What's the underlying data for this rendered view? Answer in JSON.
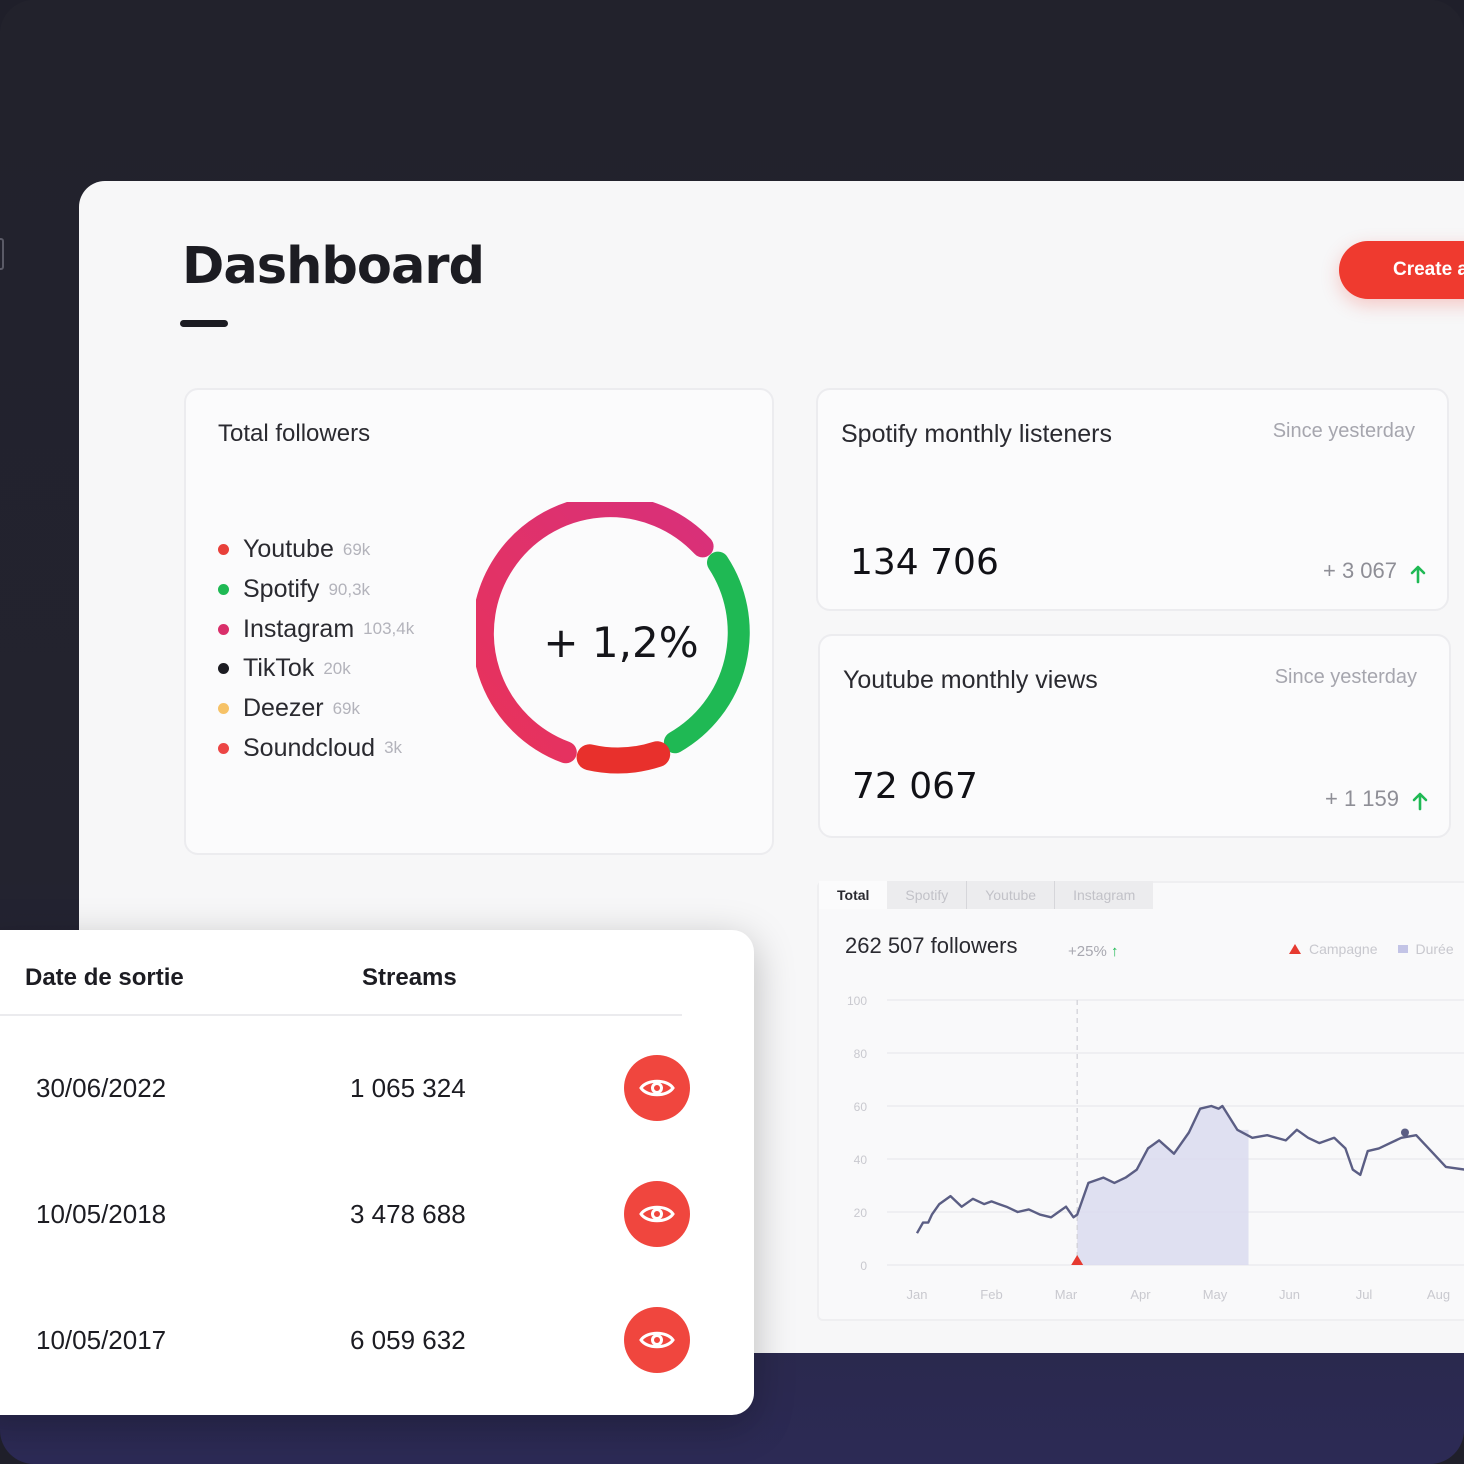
{
  "header": {
    "title": "Dashboard",
    "create_label": "Create a"
  },
  "followers": {
    "title": "Total followers",
    "items": [
      {
        "name": "Youtube",
        "value": "69k",
        "color": "#e8403a"
      },
      {
        "name": "Spotify",
        "value": "90,3k",
        "color": "#1fb954"
      },
      {
        "name": "Instagram",
        "value": "103,4k",
        "color": "#d92f6a"
      },
      {
        "name": "TikTok",
        "value": "20k",
        "color": "#1c1c22"
      },
      {
        "name": "Deezer",
        "value": "69k",
        "color": "#f6c267"
      },
      {
        "name": "Soundcloud",
        "value": "3k",
        "color": "#ec4545"
      }
    ],
    "donut_center": "+ 1,2%"
  },
  "spotify_card": {
    "title": "Spotify monthly listeners",
    "since": "Since yesterday",
    "value": "134 706",
    "delta": "+ 3 067"
  },
  "youtube_card": {
    "title": "Youtube monthly views",
    "since": "Since yesterday",
    "value": "72 067",
    "delta": "+ 1 159"
  },
  "chart_panel": {
    "tabs": [
      "Total",
      "Spotify",
      "Youtube",
      "Instagram"
    ],
    "followers_label": "262 507 followers",
    "growth": "+25%",
    "legend": [
      "Campagne",
      "Durée"
    ]
  },
  "chart_data": {
    "type": "line",
    "title": "",
    "xlabel": "",
    "ylabel": "",
    "categories": [
      "Jan",
      "Feb",
      "Mar",
      "Apr",
      "May",
      "Jun",
      "Jul",
      "Aug"
    ],
    "ylim": [
      0,
      100
    ],
    "yticks": [
      0,
      20,
      40,
      60,
      80,
      100
    ],
    "grid": true,
    "legend_position": "top-right",
    "series": [
      {
        "x": [
          0.0,
          0.08,
          0.15,
          0.2,
          0.3,
          0.45,
          0.6,
          0.75,
          0.9,
          1.0,
          1.1,
          1.2,
          1.35,
          1.5,
          1.65,
          1.8,
          1.9,
          2.0,
          2.1,
          2.15,
          2.3,
          2.5,
          2.65,
          2.8,
          2.95,
          3.1,
          3.25,
          3.45,
          3.65,
          3.8,
          3.95,
          4.05,
          4.1,
          4.3,
          4.5,
          4.7,
          4.95,
          5.1,
          5.25,
          5.4,
          5.6,
          5.75,
          5.85,
          5.95,
          6.05,
          6.2,
          6.5,
          6.7,
          6.9,
          7.1,
          7.35
        ],
        "y": [
          12,
          16,
          16,
          19,
          23,
          26,
          22,
          25,
          23,
          24,
          23,
          22,
          20,
          21,
          19,
          18,
          20,
          22,
          18,
          19,
          31,
          33,
          31,
          33,
          36,
          44,
          47,
          42,
          50,
          59,
          60,
          59,
          60,
          51,
          48,
          49,
          47,
          51,
          48,
          46,
          48,
          44,
          36,
          34,
          43,
          44,
          48,
          49,
          43,
          37,
          36
        ]
      }
    ],
    "highlight_range": {
      "label": "Durée",
      "from": 2.15,
      "to": 4.45
    },
    "markers": [
      {
        "label": "Campagne",
        "x": 2.15,
        "y": 0
      },
      {
        "x": 6.55,
        "y": 50
      }
    ]
  },
  "table": {
    "headers": {
      "date": "Date de sortie",
      "streams": "Streams"
    },
    "rows": [
      {
        "date": "30/06/2022",
        "streams": "1 065 324"
      },
      {
        "date": "10/05/2018",
        "streams": "3 478 688"
      },
      {
        "date": "10/05/2017",
        "streams": "6 059 632"
      }
    ]
  },
  "colors": {
    "accent": "#ef3a2f",
    "positive": "#1fb954",
    "chart_line": "#5b5e84",
    "chart_fill": "#dadcef"
  }
}
